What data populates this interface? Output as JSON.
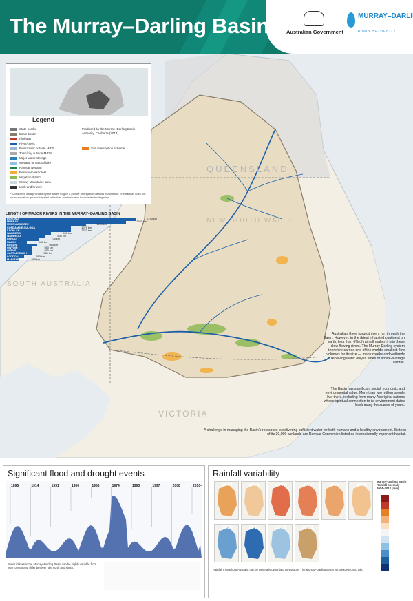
{
  "header": {
    "title": "The Murray–Darling Basin",
    "gov_label": "Australian Government",
    "mdba_name": "MURRAY–DARLING",
    "mdba_sub": "BASIN AUTHORITY"
  },
  "legend": {
    "title": "Legend",
    "items": [
      "State border",
      "Basin border",
      "Highway",
      "River/creek",
      "River/creek outside M-DB",
      "Town/city outside M-DB",
      "Major water storage",
      "Wetland or natural lake",
      "Ramsar wetland",
      "Reserve/park/forest",
      "Irrigation district",
      "Snowy Mountains area",
      "Lock and/or weir",
      "Salt interception scheme"
    ],
    "produced": "Produced by the Murray–Darling Basin Authority, Canberra (2014)",
    "note": "* Conducted data provided by the states to give a picture of irrigation districts in Australia. The dataset does not show actual on-ground irrigated but rather administrative boundaries for irrigation."
  },
  "rivers": {
    "heading": "LENGTH OF MAJOR RIVERS IN THE MURRAY–DARLING BASIN",
    "list": [
      {
        "name": "DARLING",
        "km": "2740 km",
        "v": 2740
      },
      {
        "name": "MURRAY",
        "km": "2530 km",
        "v": 2530
      },
      {
        "name": "MURRUMBIDGEE",
        "km": "1690 km",
        "v": 1690
      },
      {
        "name": "CONDAMINE-CULGOA",
        "km": "1375 km",
        "v": 1375
      },
      {
        "name": "LACHLAN",
        "km": "1370 km",
        "v": 1370
      },
      {
        "name": "WARREGO",
        "km": "950 km",
        "v": 950
      },
      {
        "name": "WARREGO",
        "km": "830 km",
        "v": 830
      },
      {
        "name": "PAROO",
        "km": "700 km",
        "v": 700
      },
      {
        "name": "NAMOI",
        "km": "440 km",
        "v": 440
      },
      {
        "name": "BOGAN",
        "km": "660 km",
        "v": 660
      },
      {
        "name": "GWYDIR",
        "km": "560 km",
        "v": 560
      },
      {
        "name": "OVENS",
        "km": "560 km",
        "v": 560
      },
      {
        "name": "CASTLEREAGH",
        "km": "550 km",
        "v": 550
      },
      {
        "name": "LODDON",
        "km": "390 km",
        "v": 390
      },
      {
        "name": "MARIBYRNONG",
        "km": "290 km",
        "v": 290
      }
    ]
  },
  "map_labels": {
    "qld": "QUEENSLAND",
    "nsw": "NEW SOUTH WALES",
    "sa": "SOUTH AUSTRALIA",
    "vic": "VICTORIA"
  },
  "blurb1": "Australia's three longest rivers run through the Basin. However, in the driest inhabited continent on earth, less than 6% of rainfall makes it into these slow flowing rivers. The Murray-Darling system therefore carries one of the world's smallest flow volumes for its size — many creeks and wetlands receiving water only in times of above-average rainfall.",
  "blurb2": "The Basin has significant social, economic and environmental value. More than two million people live there, including from many Aboriginal nations whose spiritual connection to its environment dates back many thousands of years.",
  "blurb3": "A challenge in managing the Basin's resources is delivering sufficient water for both humans and a healthy environment. Sixteen of its 30,000 wetlands are Ramsar Convention listed as internationally important habitat.",
  "flood": {
    "title": "Significant flood and drought events",
    "years": [
      "1895",
      "1914",
      "1931",
      "1950",
      "1956",
      "1974",
      "1993",
      "1997",
      "2008",
      "2010–11"
    ],
    "heights": [
      0.55,
      0.35,
      0.5,
      0.75,
      0.95,
      0.6,
      0.45,
      0.5,
      0.2,
      0.7
    ],
    "caption": "Water inflows in the Murray–Darling Basin can be highly variable from year to year and differ between the north and south."
  },
  "rainfall": {
    "title": "Rainfall variability",
    "years_row1": [
      "2004",
      "2005",
      "2006",
      "2007",
      "2008",
      "2009"
    ],
    "years_row2": [
      "2010",
      "2011",
      "2012",
      "2013"
    ],
    "legend_title": "Murray–Darling Basin Rainfall anomaly 2004–2013 (mm)",
    "caption": "Rainfall throughout Australia can be generally described as variable. The Murray–Darling Basin is no exception to this."
  },
  "colors": {
    "banner": "#0f7a6a",
    "river": "#1b5fa8",
    "basin_land": "#eadfc9",
    "qld_land": "#d8d8d8",
    "sea": "#e6ecef",
    "irrigation": "#7fb94a",
    "reserve": "#f0a830"
  }
}
